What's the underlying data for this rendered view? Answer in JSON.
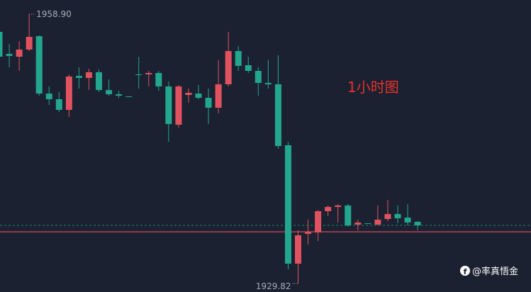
{
  "chart_data": {
    "type": "candlestick",
    "annotation": "1小时图",
    "max_label": "1958.90",
    "min_label": "1929.82",
    "watermark": "@率真悟金",
    "up_color": "#e0525f",
    "down_color": "#22a68e",
    "ylim": [
      1928.91,
      1960.43
    ],
    "last_price": 1936.1,
    "reference_price": 1935.41,
    "open": [
      1956.99,
      1954.62,
      1954.31,
      1955.08,
      1956.53,
      1950.33,
      1949.72,
      1948.57,
      1952.24,
      1952.02,
      1952.63,
      1950.71,
      1950.26,
      1950.03,
      1952.4,
      1952.4,
      1952.55,
      1951.1,
      1946.97,
      1950.18,
      1950.33,
      1949.87,
      1948.8,
      1951.33,
      1954.92,
      1953.39,
      1952.78,
      1951.48,
      1951.33,
      1944.75,
      1931.97,
      1935.19,
      1935.34,
      1937.63,
      1938.09,
      1938.25,
      1936.18,
      1936.33,
      1936.18,
      1936.79,
      1937.33,
      1936.94,
      1936.49
    ],
    "high": [
      1957.22,
      1955.69,
      1955.99,
      1958.9,
      1956.61,
      1951.1,
      1950.49,
      1952.4,
      1953.16,
      1953.01,
      1952.93,
      1951.86,
      1950.64,
      1950.03,
      1954.31,
      1952.78,
      1952.78,
      1951.63,
      1951.25,
      1950.87,
      1951.25,
      1950.87,
      1953.93,
      1956.99,
      1955.46,
      1954.31,
      1953.16,
      1953.93,
      1954.46,
      1945.13,
      1935.57,
      1936.72,
      1937.79,
      1938.25,
      1938.4,
      1938.4,
      1936.72,
      1936.33,
      1938.25,
      1938.86,
      1938.25,
      1938.4,
      1936.56
    ],
    "low": [
      1953.93,
      1953.16,
      1952.78,
      1954.92,
      1950.1,
      1949.11,
      1948.34,
      1947.81,
      1950.87,
      1950.71,
      1950.49,
      1950.1,
      1949.87,
      1949.95,
      1950.87,
      1951.1,
      1950.64,
      1945.13,
      1946.66,
      1949.34,
      1949.72,
      1947.04,
      1948.19,
      1951.1,
      1952.78,
      1952.55,
      1950.1,
      1950.87,
      1944.37,
      1931.36,
      1929.82,
      1934.04,
      1934.42,
      1937.1,
      1936.41,
      1935.95,
      1935.57,
      1936.26,
      1936.1,
      1936.56,
      1936.33,
      1936.1,
      1935.57
    ],
    "close": [
      1954.31,
      1954.39,
      1955.08,
      1956.45,
      1950.33,
      1949.72,
      1948.57,
      1952.17,
      1952.02,
      1952.63,
      1950.71,
      1950.26,
      1950.1,
      1949.95,
      1952.32,
      1952.55,
      1951.1,
      1947.04,
      1951.1,
      1950.41,
      1949.87,
      1948.8,
      1951.33,
      1954.92,
      1953.32,
      1952.78,
      1951.48,
      1951.33,
      1944.67,
      1931.97,
      1935.03,
      1935.41,
      1937.63,
      1938.09,
      1938.25,
      1936.1,
      1936.41,
      1936.26,
      1936.72,
      1937.33,
      1936.87,
      1936.41,
      1936.1
    ]
  }
}
